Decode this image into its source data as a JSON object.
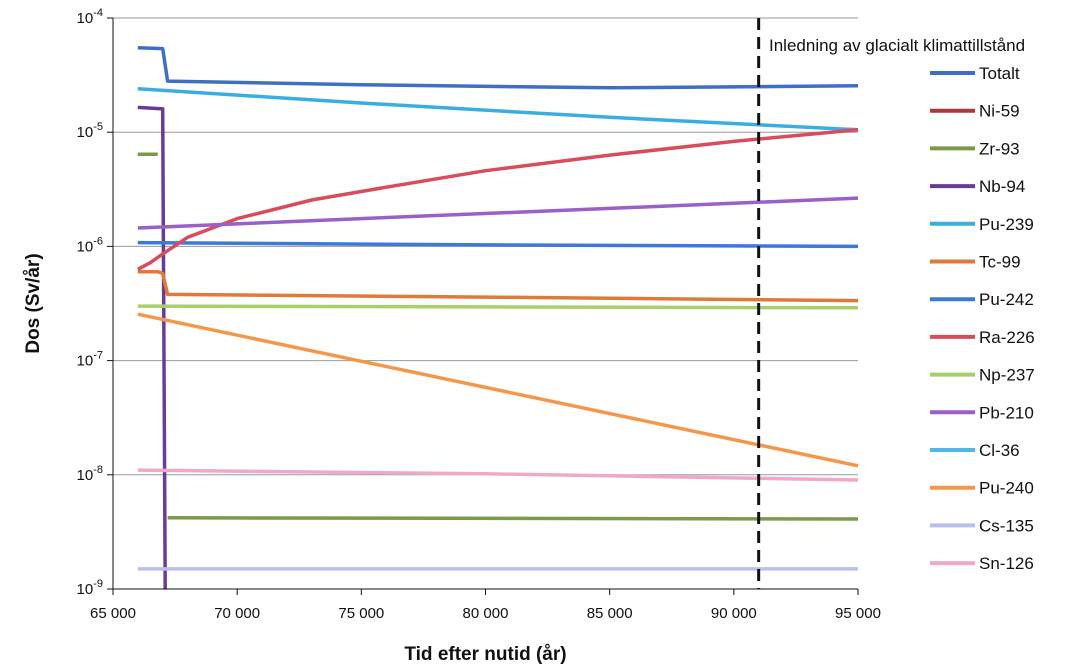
{
  "chart_data": {
    "type": "line",
    "xlabel": "Tid efter nutid (år)",
    "ylabel": "Dos (Sv/år)",
    "xlim": [
      65000,
      95000
    ],
    "ylim": [
      1e-09,
      0.0001
    ],
    "y_scale": "log",
    "grid": "horizontal",
    "legend_position": "right",
    "x_ticks": [
      {
        "value": 65000,
        "label": "65 000"
      },
      {
        "value": 70000,
        "label": "70 000"
      },
      {
        "value": 75000,
        "label": "75 000"
      },
      {
        "value": 80000,
        "label": "80 000"
      },
      {
        "value": 85000,
        "label": "85 000"
      },
      {
        "value": 90000,
        "label": "90 000"
      },
      {
        "value": 95000,
        "label": "95 000"
      }
    ],
    "y_ticks": [
      {
        "value": 0.0001,
        "base": "10",
        "exp": "-4"
      },
      {
        "value": 1e-05,
        "base": "10",
        "exp": "-5"
      },
      {
        "value": 1e-06,
        "base": "10",
        "exp": "-6"
      },
      {
        "value": 1e-07,
        "base": "10",
        "exp": "-7"
      },
      {
        "value": 1e-08,
        "base": "10",
        "exp": "-8"
      },
      {
        "value": 1e-09,
        "base": "10",
        "exp": "-9"
      }
    ],
    "annotations": [
      {
        "x": 91000,
        "label": "Inledning av glacialt klimattillstånd",
        "style": "dashed-vertical-line"
      }
    ],
    "series": [
      {
        "name": "Totalt",
        "color": "#3f6fc3",
        "points": [
          [
            66000,
            5.5e-05
          ],
          [
            67000,
            5.4e-05
          ],
          [
            67200,
            2.8e-05
          ],
          [
            75000,
            2.6e-05
          ],
          [
            85000,
            2.45e-05
          ],
          [
            95000,
            2.55e-05
          ]
        ]
      },
      {
        "name": "Ni-59",
        "color": "#a8383b",
        "points": []
      },
      {
        "name": "Zr-93",
        "color": "#7b9a4a",
        "points": [
          [
            66000,
            6.4e-06
          ],
          [
            66800,
            6.4e-06
          ],
          [
            null,
            null
          ],
          [
            67200,
            4.2e-09
          ],
          [
            95000,
            4.1e-09
          ]
        ]
      },
      {
        "name": "Nb-94",
        "color": "#6a3b93",
        "points": [
          [
            66000,
            1.65e-05
          ],
          [
            67000,
            1.6e-05
          ],
          [
            67100,
            1e-09
          ]
        ]
      },
      {
        "name": "Pu-239",
        "color": "#3aaee0",
        "points": [
          [
            66000,
            2.4e-05
          ],
          [
            75000,
            1.8e-05
          ],
          [
            85000,
            1.35e-05
          ],
          [
            95000,
            1.05e-05
          ]
        ]
      },
      {
        "name": "Tc-99",
        "color": "#e07a3a",
        "points": [
          [
            66000,
            6e-07
          ],
          [
            66800,
            6e-07
          ],
          [
            67000,
            5.8e-07
          ],
          [
            67200,
            3.8e-07
          ],
          [
            80000,
            3.6e-07
          ],
          [
            95000,
            3.35e-07
          ]
        ]
      },
      {
        "name": "Pu-242",
        "color": "#3b7ad8",
        "points": [
          [
            66000,
            1.08e-06
          ],
          [
            80000,
            1.03e-06
          ],
          [
            95000,
            1e-06
          ]
        ]
      },
      {
        "name": "Ra-226",
        "color": "#d94c5c",
        "points": [
          [
            66000,
            6.3e-07
          ],
          [
            66500,
            7.2e-07
          ],
          [
            67000,
            8.6e-07
          ],
          [
            68000,
            1.2e-06
          ],
          [
            70000,
            1.75e-06
          ],
          [
            73000,
            2.55e-06
          ],
          [
            76000,
            3.3e-06
          ],
          [
            80000,
            4.6e-06
          ],
          [
            85000,
            6.3e-06
          ],
          [
            90000,
            8.3e-06
          ],
          [
            95000,
            1.05e-05
          ]
        ]
      },
      {
        "name": "Np-237",
        "color": "#a8d06a",
        "points": [
          [
            66000,
            3e-07
          ],
          [
            80000,
            2.95e-07
          ],
          [
            95000,
            2.9e-07
          ]
        ]
      },
      {
        "name": "Pb-210",
        "color": "#9b5fc9",
        "points": [
          [
            66000,
            1.45e-06
          ],
          [
            75000,
            1.75e-06
          ],
          [
            85000,
            2.15e-06
          ],
          [
            95000,
            2.65e-06
          ]
        ]
      },
      {
        "name": "Cl-36",
        "color": "#4fb8e6",
        "points": []
      },
      {
        "name": "Pu-240",
        "color": "#f4974a",
        "points": [
          [
            66000,
            2.55e-07
          ],
          [
            95000,
            1.2e-08
          ]
        ]
      },
      {
        "name": "Cs-135",
        "color": "#b7bff0",
        "points": [
          [
            66000,
            1.5e-09
          ],
          [
            95000,
            1.5e-09
          ]
        ]
      },
      {
        "name": "Sn-126",
        "color": "#f0a8c8",
        "points": [
          [
            66000,
            1.1e-08
          ],
          [
            80000,
            1.02e-08
          ],
          [
            95000,
            9e-09
          ]
        ]
      }
    ]
  }
}
